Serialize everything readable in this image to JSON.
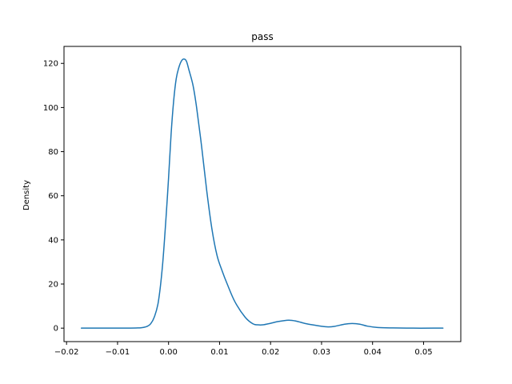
{
  "chart_data": {
    "type": "line",
    "title": "pass",
    "xlabel": "",
    "ylabel": "Density",
    "xlim": [
      -0.0205,
      0.0573
    ],
    "ylim": [
      -6.1,
      127.7
    ],
    "xticks": [
      -0.02,
      -0.01,
      0.0,
      0.01,
      0.02,
      0.03,
      0.04,
      0.05
    ],
    "xtick_labels": [
      "−0.02",
      "−0.01",
      "0.00",
      "0.01",
      "0.02",
      "0.03",
      "0.04",
      "0.05"
    ],
    "yticks": [
      0,
      20,
      40,
      60,
      80,
      100,
      120
    ],
    "ytick_labels": [
      "0",
      "20",
      "40",
      "60",
      "80",
      "100",
      "120"
    ],
    "grid": false,
    "legend": "none",
    "series": [
      {
        "color": "#1f77b4",
        "x": [
          -0.0171,
          -0.012,
          -0.008,
          -0.006,
          -0.005,
          -0.0042,
          -0.0035,
          -0.0028,
          -0.002,
          -0.0012,
          -0.0005,
          0.0,
          0.0005,
          0.001,
          0.0015,
          0.002,
          0.0025,
          0.003,
          0.0035,
          0.004,
          0.0048,
          0.0055,
          0.0065,
          0.0075,
          0.0085,
          0.0095,
          0.0105,
          0.0115,
          0.013,
          0.015,
          0.0165,
          0.0175,
          0.0185,
          0.02,
          0.0215,
          0.0235,
          0.025,
          0.027,
          0.029,
          0.031,
          0.0325,
          0.0345,
          0.036,
          0.0375,
          0.039,
          0.041,
          0.044,
          0.048,
          0.052,
          0.0538
        ],
        "y": [
          0,
          0,
          0,
          0.1,
          0.3,
          0.8,
          2,
          5,
          12,
          28,
          50,
          68,
          88,
          103,
          113,
          118,
          121,
          122,
          121,
          117,
          110,
          100,
          82,
          62,
          45,
          33,
          26,
          20,
          12,
          5,
          2,
          1.5,
          1.5,
          2.2,
          3.0,
          3.6,
          3.2,
          2.0,
          1.2,
          0.6,
          0.8,
          1.8,
          2.1,
          1.8,
          0.9,
          0.3,
          0.1,
          0,
          0,
          0
        ]
      }
    ]
  }
}
